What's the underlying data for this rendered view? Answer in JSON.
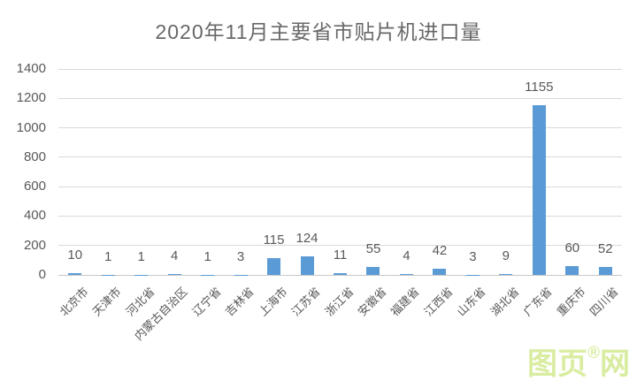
{
  "title": "2020年11月主要省市贴片机进口量",
  "watermark": {
    "text_left": "图页",
    "reg_mark": "®",
    "text_right": "网",
    "color": "#d9eda1"
  },
  "colors": {
    "bar": "#5B9BD5",
    "title_text": "#686868",
    "axis_text": "#595959",
    "gridline": "#d9d9d9",
    "background": "#ffffff"
  },
  "chart_data": {
    "type": "bar",
    "title": "2020年11月主要省市贴片机进口量",
    "categories": [
      "北京市",
      "天津市",
      "河北省",
      "内蒙古自治区",
      "辽宁省",
      "吉林省",
      "上海市",
      "江苏省",
      "浙江省",
      "安徽省",
      "福建省",
      "江西省",
      "山东省",
      "湖北省",
      "广东省",
      "重庆市",
      "四川省"
    ],
    "values": [
      10,
      1,
      1,
      4,
      1,
      3,
      115,
      124,
      11,
      55,
      4,
      42,
      3,
      9,
      1155,
      60,
      52
    ],
    "xlabel": "",
    "ylabel": "",
    "ylim": [
      0,
      1400
    ],
    "yticks": [
      0,
      200,
      400,
      600,
      800,
      1000,
      1200,
      1400
    ],
    "grid": true,
    "legend": "none",
    "data_labels": "outside-end"
  }
}
